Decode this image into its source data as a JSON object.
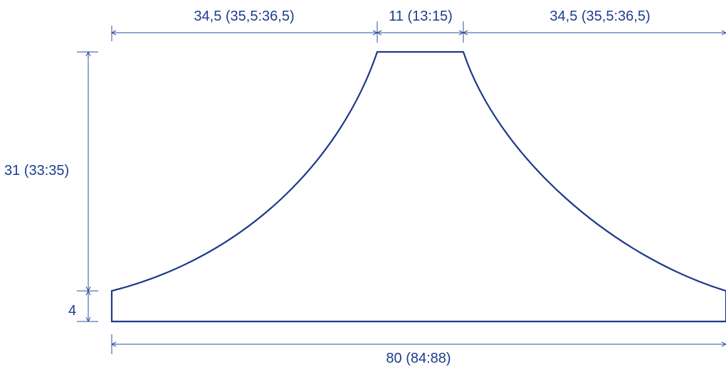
{
  "dimensions": {
    "top_left": "34,5 (35,5:36,5)",
    "top_middle": "11 (13:15)",
    "top_right": "34,5 (35,5:36,5)",
    "left_height": "31 (33:35)",
    "left_small": "4",
    "bottom_width": "80 (84:88)"
  },
  "colors": {
    "line": "#1e3a8a",
    "dimension": "#2e4f9e",
    "text": "#1d3d8f"
  }
}
